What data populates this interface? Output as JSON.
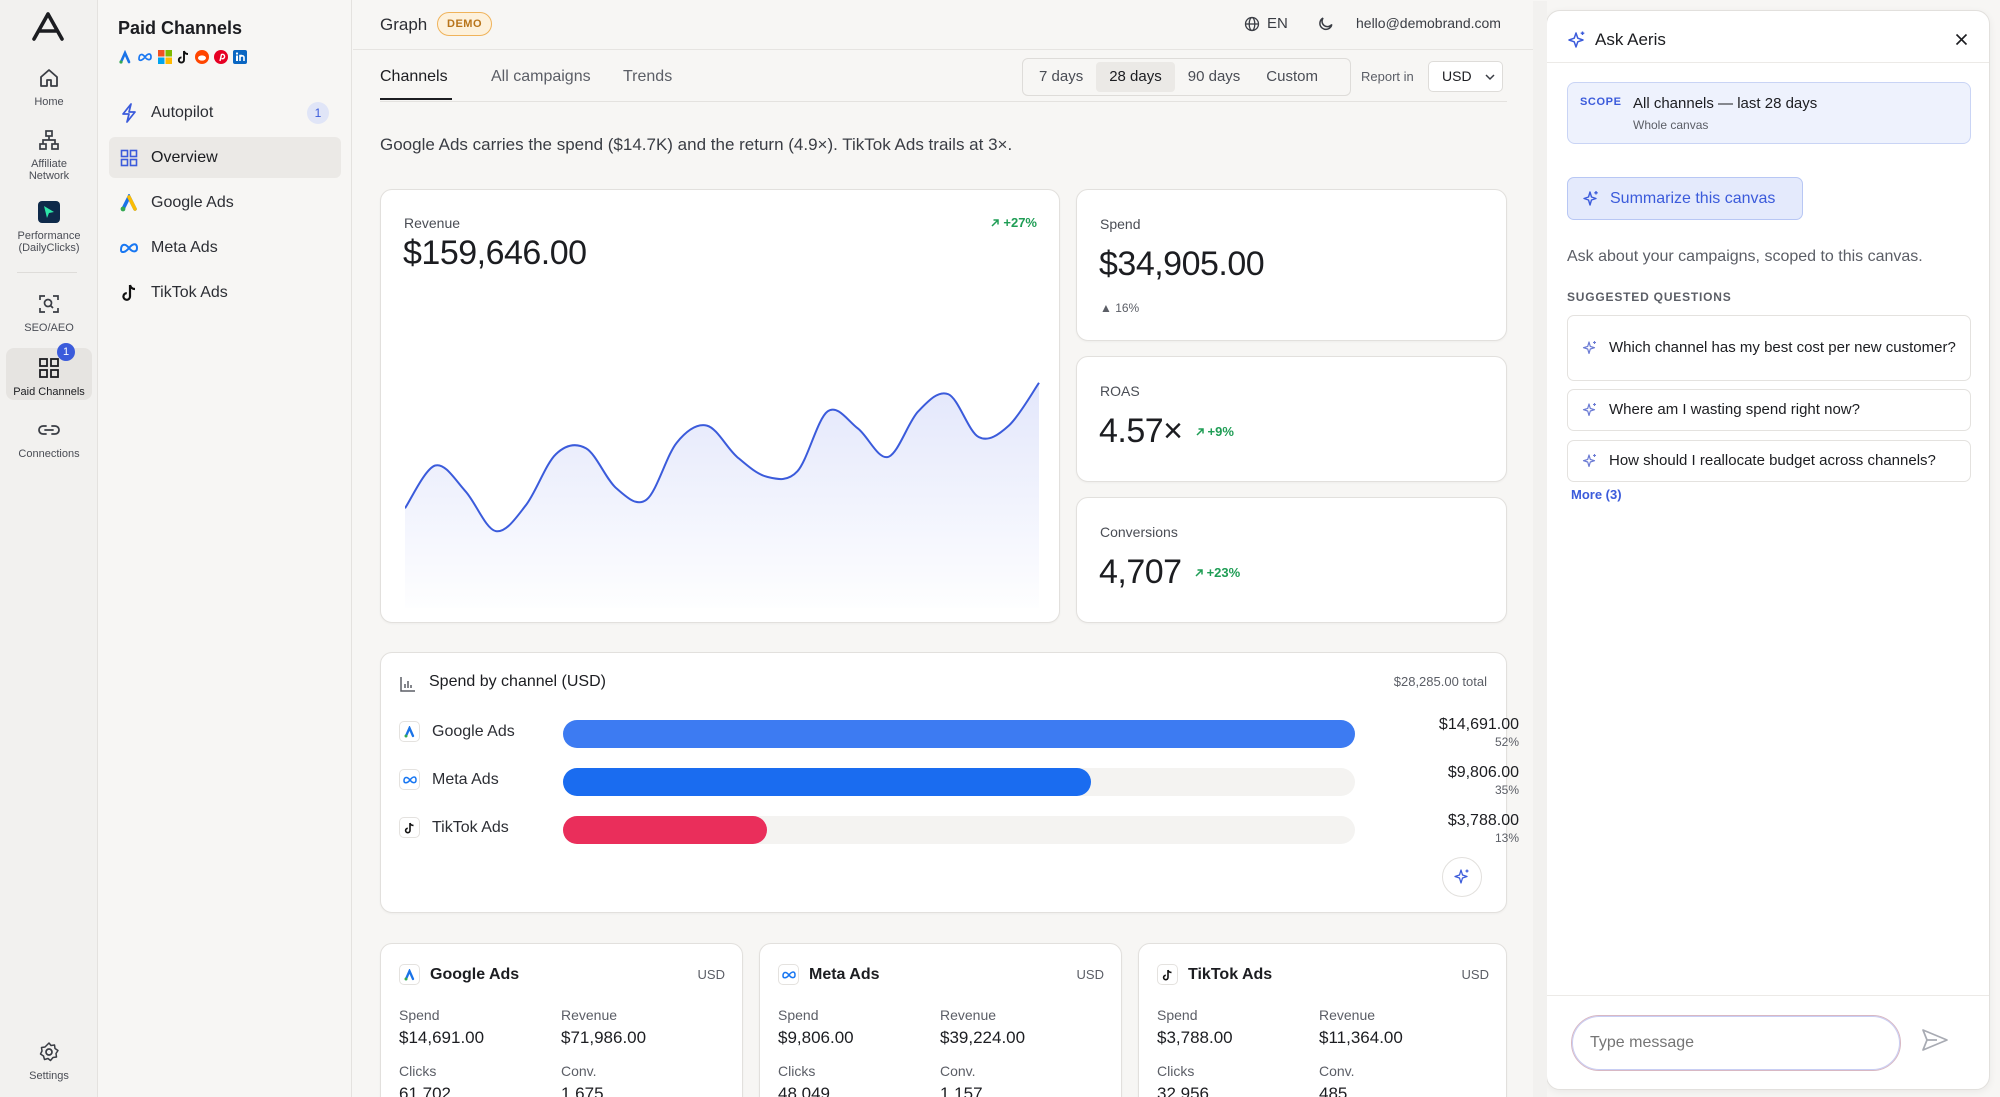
{
  "rail": {
    "items": [
      {
        "label": "Home"
      },
      {
        "label": "Affiliate\nNetwork"
      },
      {
        "label": "Performance\n(DailyClicks)"
      },
      {
        "label": "SEO/AEO"
      },
      {
        "label": "Paid Channels",
        "badge": "1"
      },
      {
        "label": "Connections"
      },
      {
        "label": "Settings"
      }
    ]
  },
  "sidebar": {
    "title": "Paid Channels",
    "items": [
      {
        "label": "Autopilot",
        "count": "1"
      },
      {
        "label": "Overview"
      },
      {
        "label": "Google Ads"
      },
      {
        "label": "Meta Ads"
      },
      {
        "label": "TikTok Ads"
      }
    ]
  },
  "topbar": {
    "title": "Graph",
    "badge": "DEMO",
    "language": "EN",
    "email": "hello@demobrand.com"
  },
  "tabs": [
    {
      "label": "Channels"
    },
    {
      "label": "All campaigns"
    },
    {
      "label": "Trends"
    }
  ],
  "ranges": [
    {
      "label": "7 days"
    },
    {
      "label": "28 days"
    },
    {
      "label": "90 days"
    },
    {
      "label": "Custom"
    }
  ],
  "report": {
    "label": "Report in",
    "currency": "USD"
  },
  "summary": "Google Ads carries the spend ($14.7K) and the return (4.9×). TikTok Ads trails at 3×.",
  "kpis": {
    "revenue": {
      "label": "Revenue",
      "value": "$159,646.00",
      "delta": "+27%"
    },
    "spend": {
      "label": "Spend",
      "value": "$34,905.00",
      "delta": "▲ 16%"
    },
    "roas": {
      "label": "ROAS",
      "value": "4.57×",
      "delta": "+9%"
    },
    "conversions": {
      "label": "Conversions",
      "value": "4,707",
      "delta": "+23%"
    }
  },
  "chart_data": {
    "type": "area",
    "values": [
      0.35,
      0.5,
      0.41,
      0.27,
      0.36,
      0.54,
      0.56,
      0.42,
      0.38,
      0.58,
      0.64,
      0.53,
      0.46,
      0.48,
      0.69,
      0.63,
      0.53,
      0.69,
      0.75,
      0.6,
      0.64,
      0.79
    ],
    "fill": "#e3e7fb",
    "stroke": "#3b5bdb"
  },
  "spend_by_channel": {
    "title": "Spend by channel (USD)",
    "total": "$28,285.00 total",
    "rows": [
      {
        "name": "Google Ads",
        "amount": "$14,691.00",
        "pct": "52%",
        "share": 1.0,
        "color": "#3d7bf2"
      },
      {
        "name": "Meta Ads",
        "amount": "$9,806.00",
        "pct": "35%",
        "share": 0.667,
        "color": "#1a6cf0"
      },
      {
        "name": "TikTok Ads",
        "amount": "$3,788.00",
        "pct": "13%",
        "share": 0.258,
        "color": "#ea2e5b"
      }
    ]
  },
  "channel_cards": [
    {
      "name": "Google Ads",
      "currency": "USD",
      "spend_label": "Spend",
      "spend": "$14,691.00",
      "revenue_label": "Revenue",
      "revenue": "$71,986.00",
      "clicks_label": "Clicks",
      "clicks": "61,702",
      "conv_label": "Conv.",
      "conv": "1,675"
    },
    {
      "name": "Meta Ads",
      "currency": "USD",
      "spend_label": "Spend",
      "spend": "$9,806.00",
      "revenue_label": "Revenue",
      "revenue": "$39,224.00",
      "clicks_label": "Clicks",
      "clicks": "48,049",
      "conv_label": "Conv.",
      "conv": "1,157"
    },
    {
      "name": "TikTok Ads",
      "currency": "USD",
      "spend_label": "Spend",
      "spend": "$3,788.00",
      "revenue_label": "Revenue",
      "revenue": "$11,364.00",
      "clicks_label": "Clicks",
      "clicks": "32,956",
      "conv_label": "Conv.",
      "conv": "485"
    }
  ],
  "ask": {
    "title": "Ask Aeris",
    "scope_tag": "SCOPE",
    "scope_main": "All channels — last 28 days",
    "scope_sub": "Whole canvas",
    "summarize": "Summarize this canvas",
    "hint": "Ask about your campaigns, scoped to this canvas.",
    "suggested_label": "SUGGESTED QUESTIONS",
    "suggestions": [
      {
        "text": "Which channel has my best cost per new customer?"
      },
      {
        "text": "Where am I wasting spend right now?"
      },
      {
        "text": "How should I reallocate budget across channels?"
      }
    ],
    "more": "More (3)",
    "input_placeholder": "Type message"
  }
}
